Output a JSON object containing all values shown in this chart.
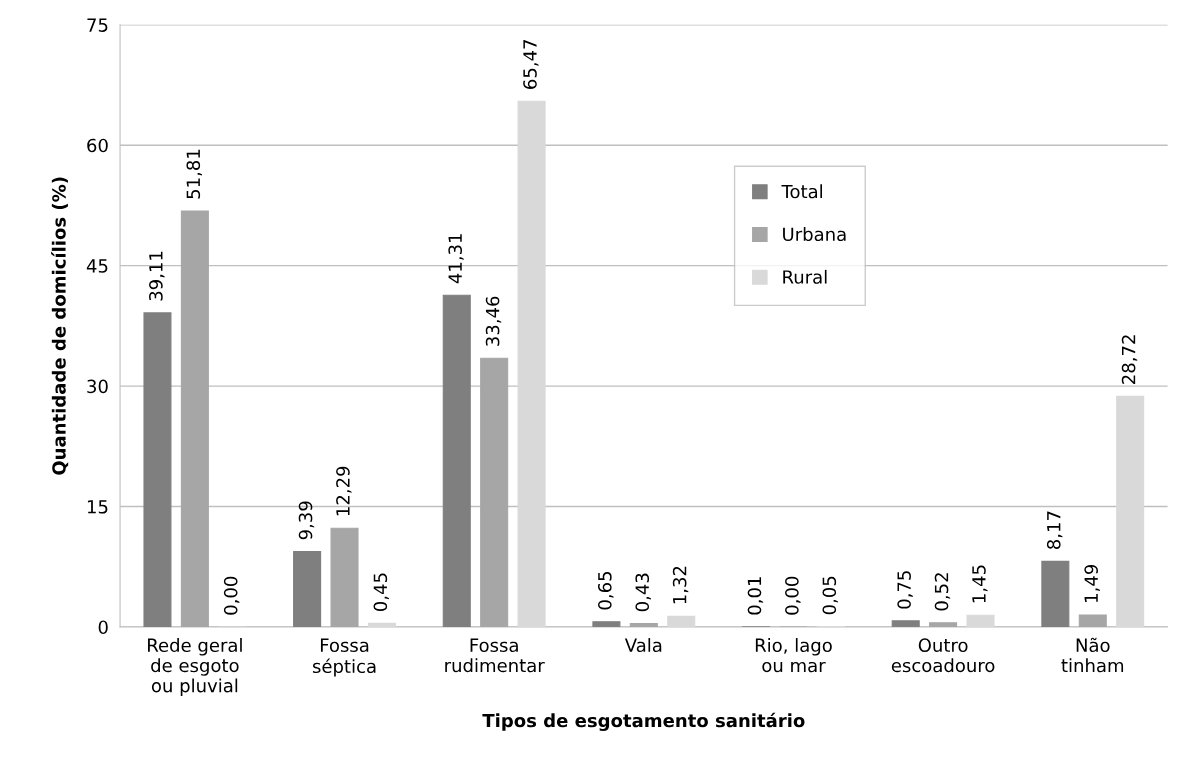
{
  "chart_data": {
    "type": "bar",
    "xlabel": "Tipos de esgotamento sanitário",
    "ylabel": "Quantidade de domicílios (%)",
    "categories": [
      "Rede geral\nde esgoto\nou pluvial",
      "Fossa\nséptica",
      "Fossa\nrudimentar",
      "Vala",
      "Rio, lago\nou mar",
      "Outro\nescoadouro",
      "Não\ntinham"
    ],
    "series": [
      {
        "name": "Total",
        "color": "#7f7f7f",
        "values": [
          39.11,
          9.39,
          41.31,
          0.65,
          0.01,
          0.75,
          8.17
        ],
        "value_labels": [
          "39,11",
          "9,39",
          "41,31",
          "0,65",
          "0,01",
          "0,75",
          "8,17"
        ]
      },
      {
        "name": "Urbana",
        "color": "#a6a6a6",
        "values": [
          51.81,
          12.29,
          33.46,
          0.43,
          0.0,
          0.52,
          1.49
        ],
        "value_labels": [
          "51,81",
          "12,29",
          "33,46",
          "0,43",
          "0,00",
          "0,52",
          "1,49"
        ]
      },
      {
        "name": "Rural",
        "color": "#d9d9d9",
        "values": [
          0.0,
          0.45,
          65.47,
          1.32,
          0.05,
          1.45,
          28.72
        ],
        "value_labels": [
          "0,00",
          "0,45",
          "65,47",
          "1,32",
          "0,05",
          "1,45",
          "28,72"
        ]
      }
    ],
    "ylim": [
      0,
      75
    ],
    "yticks": [
      0,
      15,
      30,
      45,
      60,
      75
    ],
    "grid": "y",
    "legend": "top right"
  }
}
